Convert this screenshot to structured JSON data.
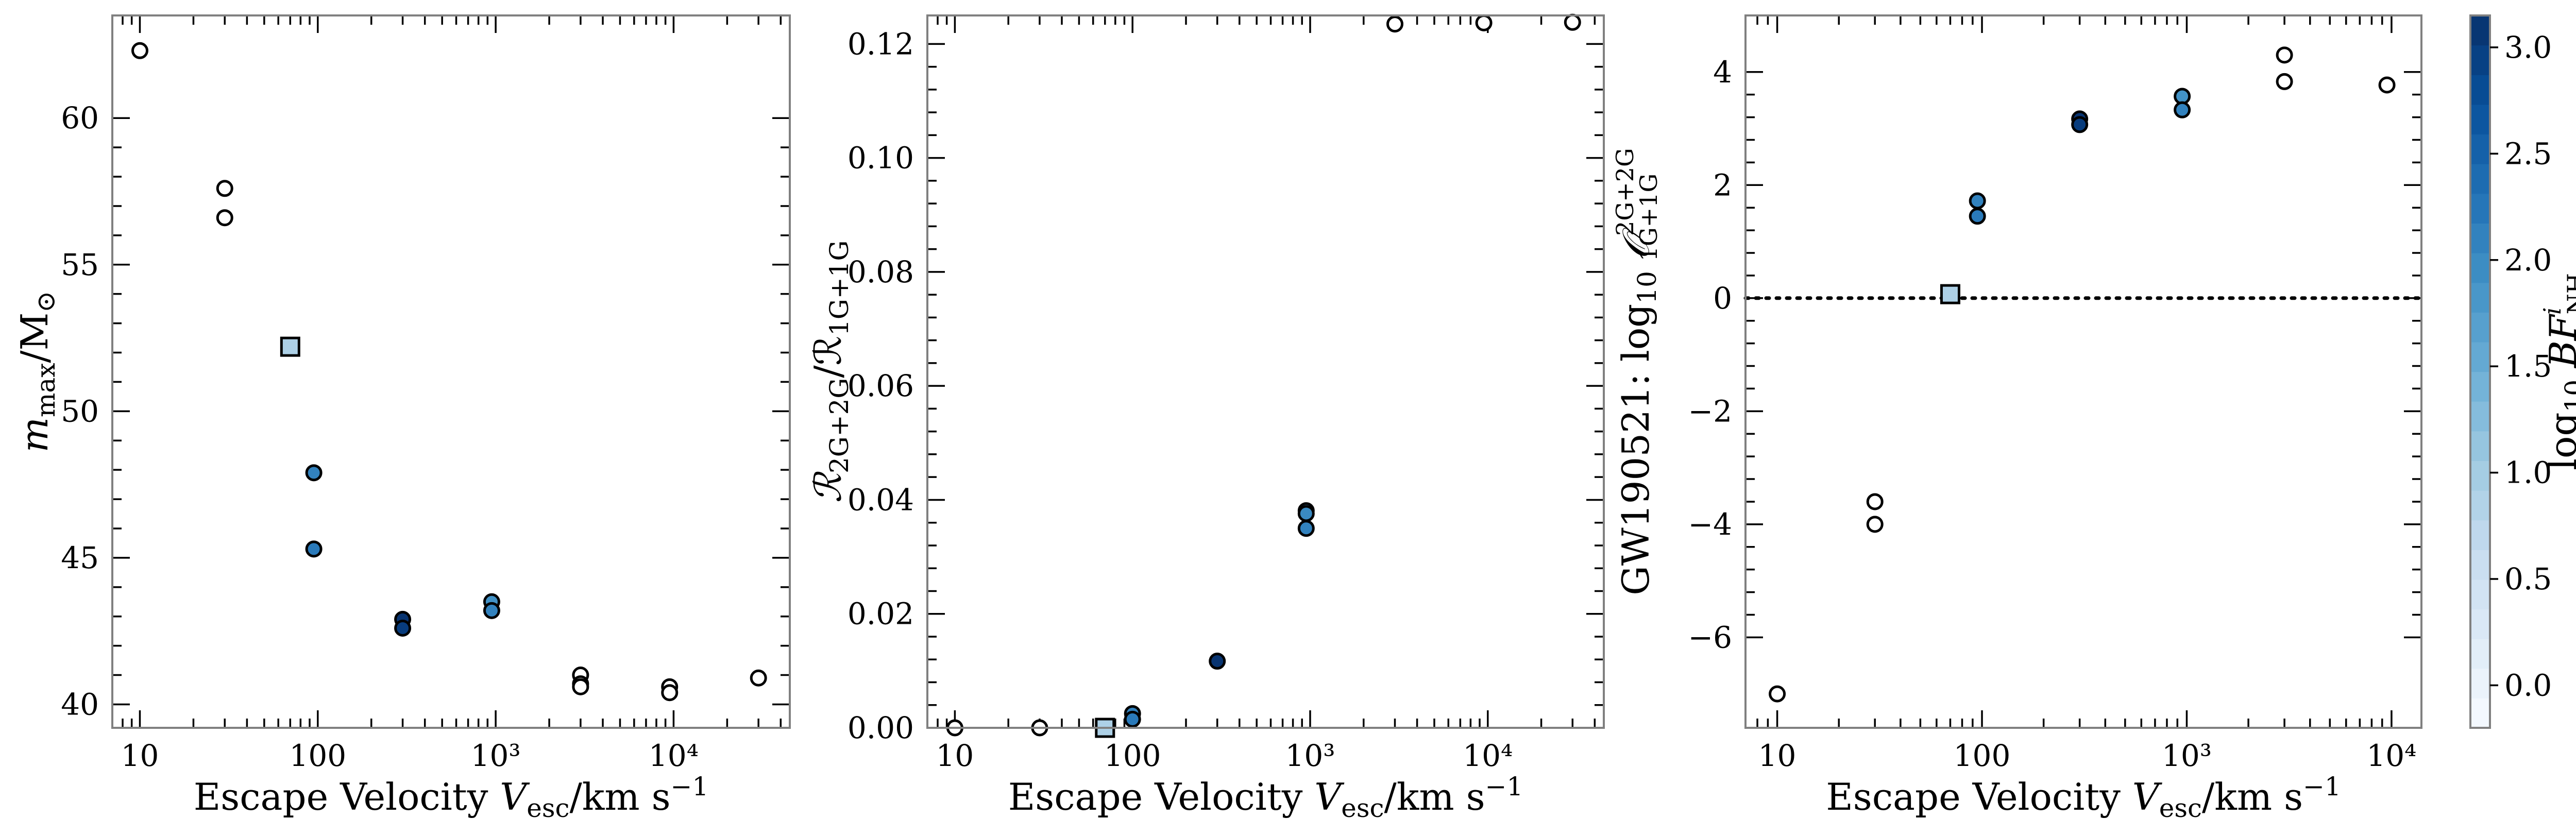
{
  "colorbar": {
    "label": "log₁₀ BF NH",
    "label_main": "log",
    "label_sub": "10",
    "label_var": " BF",
    "label_sup": "i",
    "label_subvar": "NH",
    "min": -0.2,
    "max": 3.15,
    "ticks": [
      0.0,
      0.5,
      1.0,
      1.5,
      2.0,
      2.5,
      3.0
    ],
    "tick_labels": [
      "0.0",
      "0.5",
      "1.0",
      "1.5",
      "2.0",
      "2.5",
      "3.0"
    ],
    "colors": [
      "#f7fbff",
      "#deebf7",
      "#c6dbef",
      "#9ecae1",
      "#6baed6",
      "#4292c6",
      "#2171b5",
      "#08519c",
      "#08306b"
    ]
  },
  "chart_data": [
    {
      "type": "scatter",
      "xscale": "log",
      "xlim": [
        7,
        45000
      ],
      "ylim": [
        39.2,
        63.5
      ],
      "xlabel": "Escape Velocity V_esc/km s⁻¹",
      "xlabel_parts": {
        "pre": "Escape Velocity ",
        "var": "V",
        "sub": "esc",
        "unit": "/km s",
        "sup": "−1"
      },
      "ylabel": "m_max/M_⊙",
      "ylabel_parts": {
        "var": "m",
        "sub": "max",
        "rest": "/M",
        "sub2": "⊙"
      },
      "xticks": [
        10,
        100,
        1000,
        10000
      ],
      "xtick_labels": [
        "10",
        "100",
        "10³",
        "10⁴"
      ],
      "yticks": [
        40,
        45,
        50,
        55,
        60
      ],
      "ytick_labels": [
        "40",
        "45",
        "50",
        "55",
        "60"
      ],
      "points": [
        {
          "x": 10,
          "y": 62.3,
          "c": null
        },
        {
          "x": 30,
          "y": 57.6,
          "c": null
        },
        {
          "x": 30,
          "y": 56.6,
          "c": null
        },
        {
          "x": 70,
          "y": 52.2,
          "c": 0.9,
          "marker": "square"
        },
        {
          "x": 95,
          "y": 47.9,
          "c": 2.1
        },
        {
          "x": 95,
          "y": 45.3,
          "c": 2.2
        },
        {
          "x": 300,
          "y": 42.9,
          "c": 3.1
        },
        {
          "x": 300,
          "y": 42.6,
          "c": 3.0
        },
        {
          "x": 950,
          "y": 43.5,
          "c": 1.9
        },
        {
          "x": 950,
          "y": 43.2,
          "c": 2.1
        },
        {
          "x": 3000,
          "y": 41.0,
          "c": null
        },
        {
          "x": 3000,
          "y": 40.7,
          "c": null
        },
        {
          "x": 3000,
          "y": 40.6,
          "c": null
        },
        {
          "x": 9500,
          "y": 40.6,
          "c": null
        },
        {
          "x": 9500,
          "y": 40.4,
          "c": null
        },
        {
          "x": 30000,
          "y": 40.9,
          "c": null
        }
      ]
    },
    {
      "type": "scatter",
      "xscale": "log",
      "xlim": [
        7,
        45000
      ],
      "ylim": [
        0,
        0.125
      ],
      "xlabel": "Escape Velocity V_esc/km s⁻¹",
      "xlabel_parts": {
        "pre": "Escape Velocity ",
        "var": "V",
        "sub": "esc",
        "unit": "/km s",
        "sup": "−1"
      },
      "ylabel": "R_2G+2G/R_1G+1G",
      "ylabel_parts": {
        "var": "ℛ",
        "sub": "2G+2G",
        "rest": "/ℛ",
        "sub2": "1G+1G"
      },
      "xticks": [
        10,
        100,
        1000,
        10000
      ],
      "xtick_labels": [
        "10",
        "100",
        "10³",
        "10⁴"
      ],
      "yticks": [
        0.0,
        0.02,
        0.04,
        0.06,
        0.08,
        0.1,
        0.12
      ],
      "ytick_labels": [
        "0.00",
        "0.02",
        "0.04",
        "0.06",
        "0.08",
        "0.10",
        "0.12"
      ],
      "points": [
        {
          "x": 10,
          "y": 0.0,
          "c": null
        },
        {
          "x": 30,
          "y": 0.0,
          "c": null
        },
        {
          "x": 70,
          "y": 0.0,
          "c": 0.9,
          "marker": "square"
        },
        {
          "x": 100,
          "y": 0.0025,
          "c": 2.1
        },
        {
          "x": 100,
          "y": 0.0015,
          "c": 2.2
        },
        {
          "x": 300,
          "y": 0.0117,
          "c": 3.1
        },
        {
          "x": 950,
          "y": 0.0381,
          "c": 1.9
        },
        {
          "x": 950,
          "y": 0.0376,
          "c": 2.0
        },
        {
          "x": 950,
          "y": 0.035,
          "c": 2.1
        },
        {
          "x": 3000,
          "y": 0.1235,
          "c": null
        },
        {
          "x": 9500,
          "y": 0.1237,
          "c": null
        },
        {
          "x": 30000,
          "y": 0.1238,
          "c": null
        }
      ]
    },
    {
      "type": "scatter",
      "xscale": "log",
      "xlim": [
        7,
        14000
      ],
      "ylim": [
        -7.6,
        5.0
      ],
      "xlabel": "Escape Velocity V_esc/km s⁻¹",
      "xlabel_parts": {
        "pre": "Escape Velocity ",
        "var": "V",
        "sub": "esc",
        "unit": "/km s",
        "sup": "−1"
      },
      "ylabel": "GW190521: log₁₀ O 2G+2G 1G+1G",
      "ylabel_parts": {
        "pre": "GW190521: log",
        "sub": "10",
        "var": " 𝒪",
        "sup": "2G+2G",
        "sub2": "1G+1G"
      },
      "xticks": [
        10,
        100,
        1000,
        10000
      ],
      "xtick_labels": [
        "10",
        "100",
        "10³",
        "10⁴"
      ],
      "yticks": [
        -6,
        -4,
        -2,
        0,
        2,
        4
      ],
      "ytick_labels": [
        "−6",
        "−4",
        "−2",
        "0",
        "2",
        "4"
      ],
      "reference_line_y": 0,
      "points": [
        {
          "x": 10,
          "y": -7.0,
          "c": null
        },
        {
          "x": 30,
          "y": -3.6,
          "c": null
        },
        {
          "x": 30,
          "y": -4.0,
          "c": null
        },
        {
          "x": 70,
          "y": 0.07,
          "c": 0.9,
          "marker": "square"
        },
        {
          "x": 95,
          "y": 1.72,
          "c": 2.1
        },
        {
          "x": 95,
          "y": 1.45,
          "c": 2.2
        },
        {
          "x": 300,
          "y": 3.17,
          "c": 3.1
        },
        {
          "x": 300,
          "y": 3.07,
          "c": 3.0
        },
        {
          "x": 950,
          "y": 3.57,
          "c": 1.9
        },
        {
          "x": 950,
          "y": 3.33,
          "c": 2.1
        },
        {
          "x": 3000,
          "y": 4.3,
          "c": null
        },
        {
          "x": 3000,
          "y": 3.83,
          "c": null
        },
        {
          "x": 9500,
          "y": 3.77,
          "c": null
        }
      ]
    }
  ]
}
